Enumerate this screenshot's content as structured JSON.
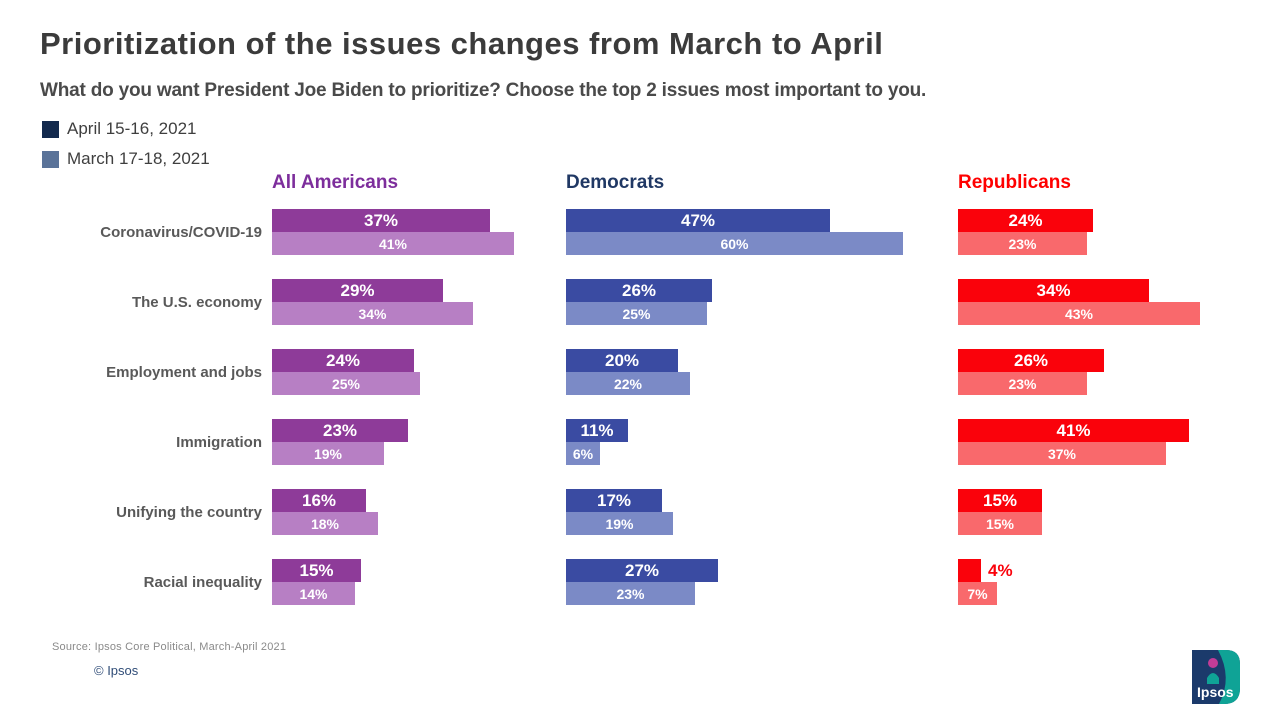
{
  "title": "Prioritization of the issues changes from March to April",
  "subtitle": "What do you want President Joe Biden to prioritize? Choose the top 2 issues most important to you.",
  "footer": {
    "source": "Source: Ipsos Core Political,  March-April 2021",
    "copyright": "© Ipsos"
  },
  "logo": {
    "text": "Ipsos",
    "navy": "#1b3a6b",
    "teal": "#0fa396",
    "magenta": "#c23c97"
  },
  "chart_data": {
    "type": "bar",
    "orientation": "horizontal",
    "legend_position": "top-left",
    "legend": [
      {
        "name": "April 15-16, 2021",
        "color": "#12294d"
      },
      {
        "name": "March 17-18, 2021",
        "color": "#5a7399"
      }
    ],
    "categories": [
      "Coronavirus/COVID-19",
      "The U.S. economy",
      "Employment and jobs",
      "Immigration",
      "Unifying the country",
      "Racial inequality"
    ],
    "value_suffix": "%",
    "groups": [
      {
        "name": "All Americans",
        "header_color": "#7d2e9c",
        "april_color": "#8e3b99",
        "march_color": "#b77fc4",
        "series": [
          {
            "name": "April 15-16, 2021",
            "values": [
              37,
              29,
              24,
              23,
              16,
              15
            ]
          },
          {
            "name": "March 17-18, 2021",
            "values": [
              41,
              34,
              25,
              19,
              18,
              14
            ]
          }
        ]
      },
      {
        "name": "Democrats",
        "header_color": "#203864",
        "april_color": "#3a4ba2",
        "march_color": "#7b8ac6",
        "series": [
          {
            "name": "April 15-16, 2021",
            "values": [
              47,
              26,
              20,
              11,
              17,
              27
            ]
          },
          {
            "name": "March 17-18, 2021",
            "values": [
              60,
              25,
              22,
              6,
              19,
              23
            ]
          }
        ]
      },
      {
        "name": "Republicans",
        "header_color": "#ff0000",
        "april_color": "#fa020b",
        "march_color": "#f9696c",
        "series": [
          {
            "name": "April 15-16, 2021",
            "values": [
              24,
              34,
              26,
              41,
              15,
              4
            ]
          },
          {
            "name": "March 17-18, 2021",
            "values": [
              23,
              43,
              23,
              37,
              15,
              7
            ]
          }
        ]
      }
    ]
  }
}
